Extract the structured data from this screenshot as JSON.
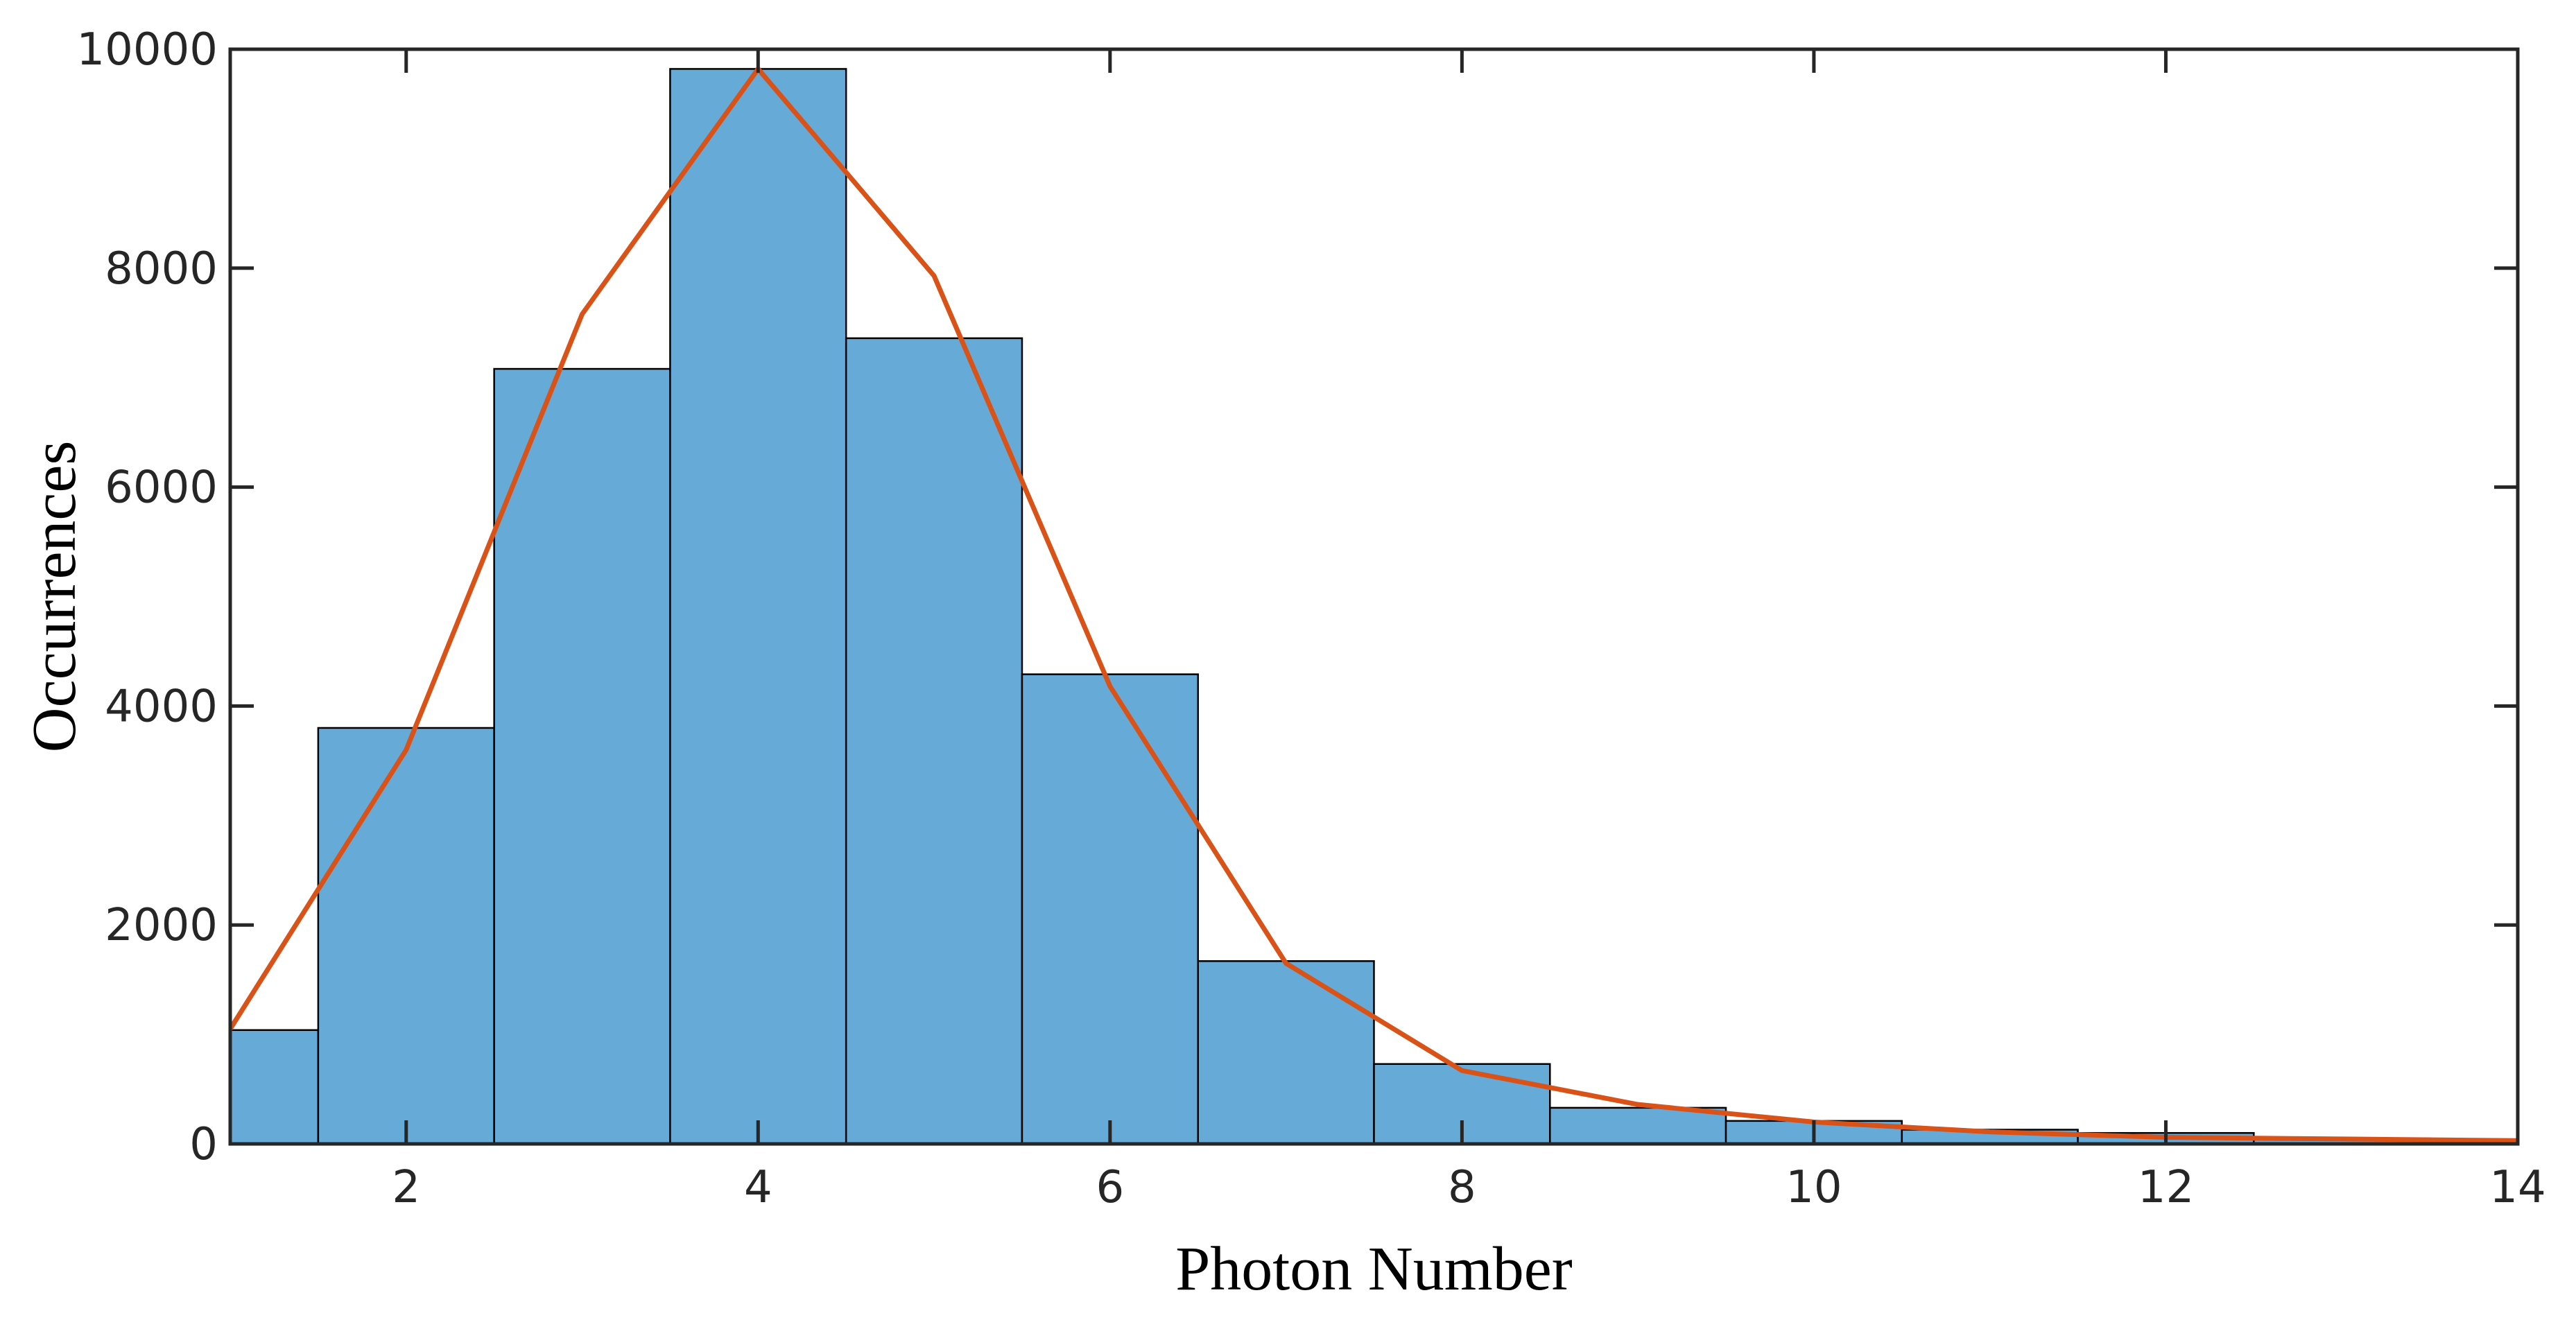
{
  "chart_data": {
    "type": "bar",
    "title": "",
    "xlabel": "Photon Number",
    "ylabel": "Occurrences",
    "xlim": [
      1,
      14
    ],
    "ylim": [
      0,
      10000
    ],
    "grid": false,
    "bin_width": 1,
    "x_ticks": [
      2,
      4,
      6,
      8,
      10,
      12,
      14
    ],
    "x_tick_labels": [
      "2",
      "4",
      "6",
      "8",
      "10",
      "12",
      "14"
    ],
    "y_ticks": [
      0,
      2000,
      4000,
      6000,
      8000,
      10000
    ],
    "y_tick_labels": [
      "0",
      "2000",
      "4000",
      "6000",
      "8000",
      "10000"
    ],
    "series": [
      {
        "type": "histogram",
        "color": "#66aad8",
        "edge_color": "#000000",
        "x": [
          1,
          2,
          3,
          4,
          5,
          6,
          7,
          8,
          9,
          10,
          11,
          12,
          13,
          14
        ],
        "values": [
          1040,
          3800,
          7080,
          9820,
          7360,
          4290,
          1670,
          730,
          330,
          210,
          130,
          100,
          50,
          40
        ]
      },
      {
        "type": "line",
        "color": "#d95319",
        "x": [
          1,
          2,
          3,
          4,
          5,
          6,
          7,
          8,
          9,
          10,
          11,
          12,
          13,
          14
        ],
        "values": [
          1050,
          3600,
          7580,
          9820,
          7930,
          4180,
          1650,
          670,
          360,
          200,
          110,
          60,
          45,
          30
        ]
      }
    ]
  }
}
